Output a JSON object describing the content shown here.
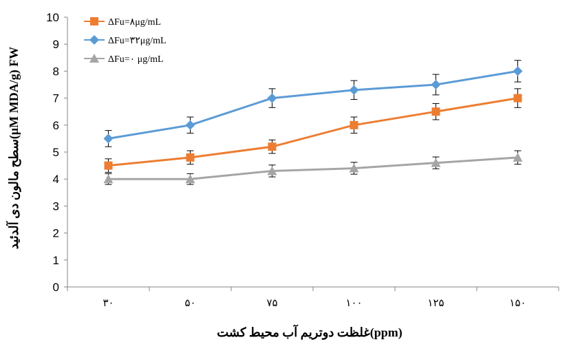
{
  "chart_data": {
    "type": "line",
    "title": "",
    "xlabel": "غلظت دوتریم آب محیط کشت(ppm)",
    "ylabel": "سطح مالون دی آلدئید(μM MDA/g) FW",
    "categories": [
      "۳۰",
      "۵۰",
      "۷۵",
      "۱۰۰",
      "۱۲۵",
      "۱۵۰"
    ],
    "ylim": [
      0,
      10
    ],
    "yticks": [
      0,
      1,
      2,
      3,
      4,
      5,
      6,
      7,
      8,
      9,
      10
    ],
    "grid": false,
    "legend_position": "top-left",
    "series": [
      {
        "name": "ΔFu=۸μg/mL",
        "color": "#ED7D31",
        "marker": "square",
        "values": [
          4.5,
          4.8,
          5.2,
          6.0,
          6.5,
          7.0
        ],
        "errors": [
          0.25,
          0.25,
          0.25,
          0.3,
          0.3,
          0.35
        ]
      },
      {
        "name": "ΔFu=۳۲μg/mL",
        "color": "#5B9BD5",
        "marker": "diamond",
        "values": [
          5.5,
          6.0,
          7.0,
          7.3,
          7.5,
          8.0
        ],
        "errors": [
          0.3,
          0.3,
          0.35,
          0.35,
          0.38,
          0.4
        ]
      },
      {
        "name": "ΔFu=۰ μg/mL",
        "color": "#A5A5A5",
        "marker": "triangle",
        "values": [
          4.0,
          4.0,
          4.3,
          4.4,
          4.6,
          4.8
        ],
        "errors": [
          0.2,
          0.2,
          0.22,
          0.22,
          0.22,
          0.25
        ]
      }
    ]
  }
}
